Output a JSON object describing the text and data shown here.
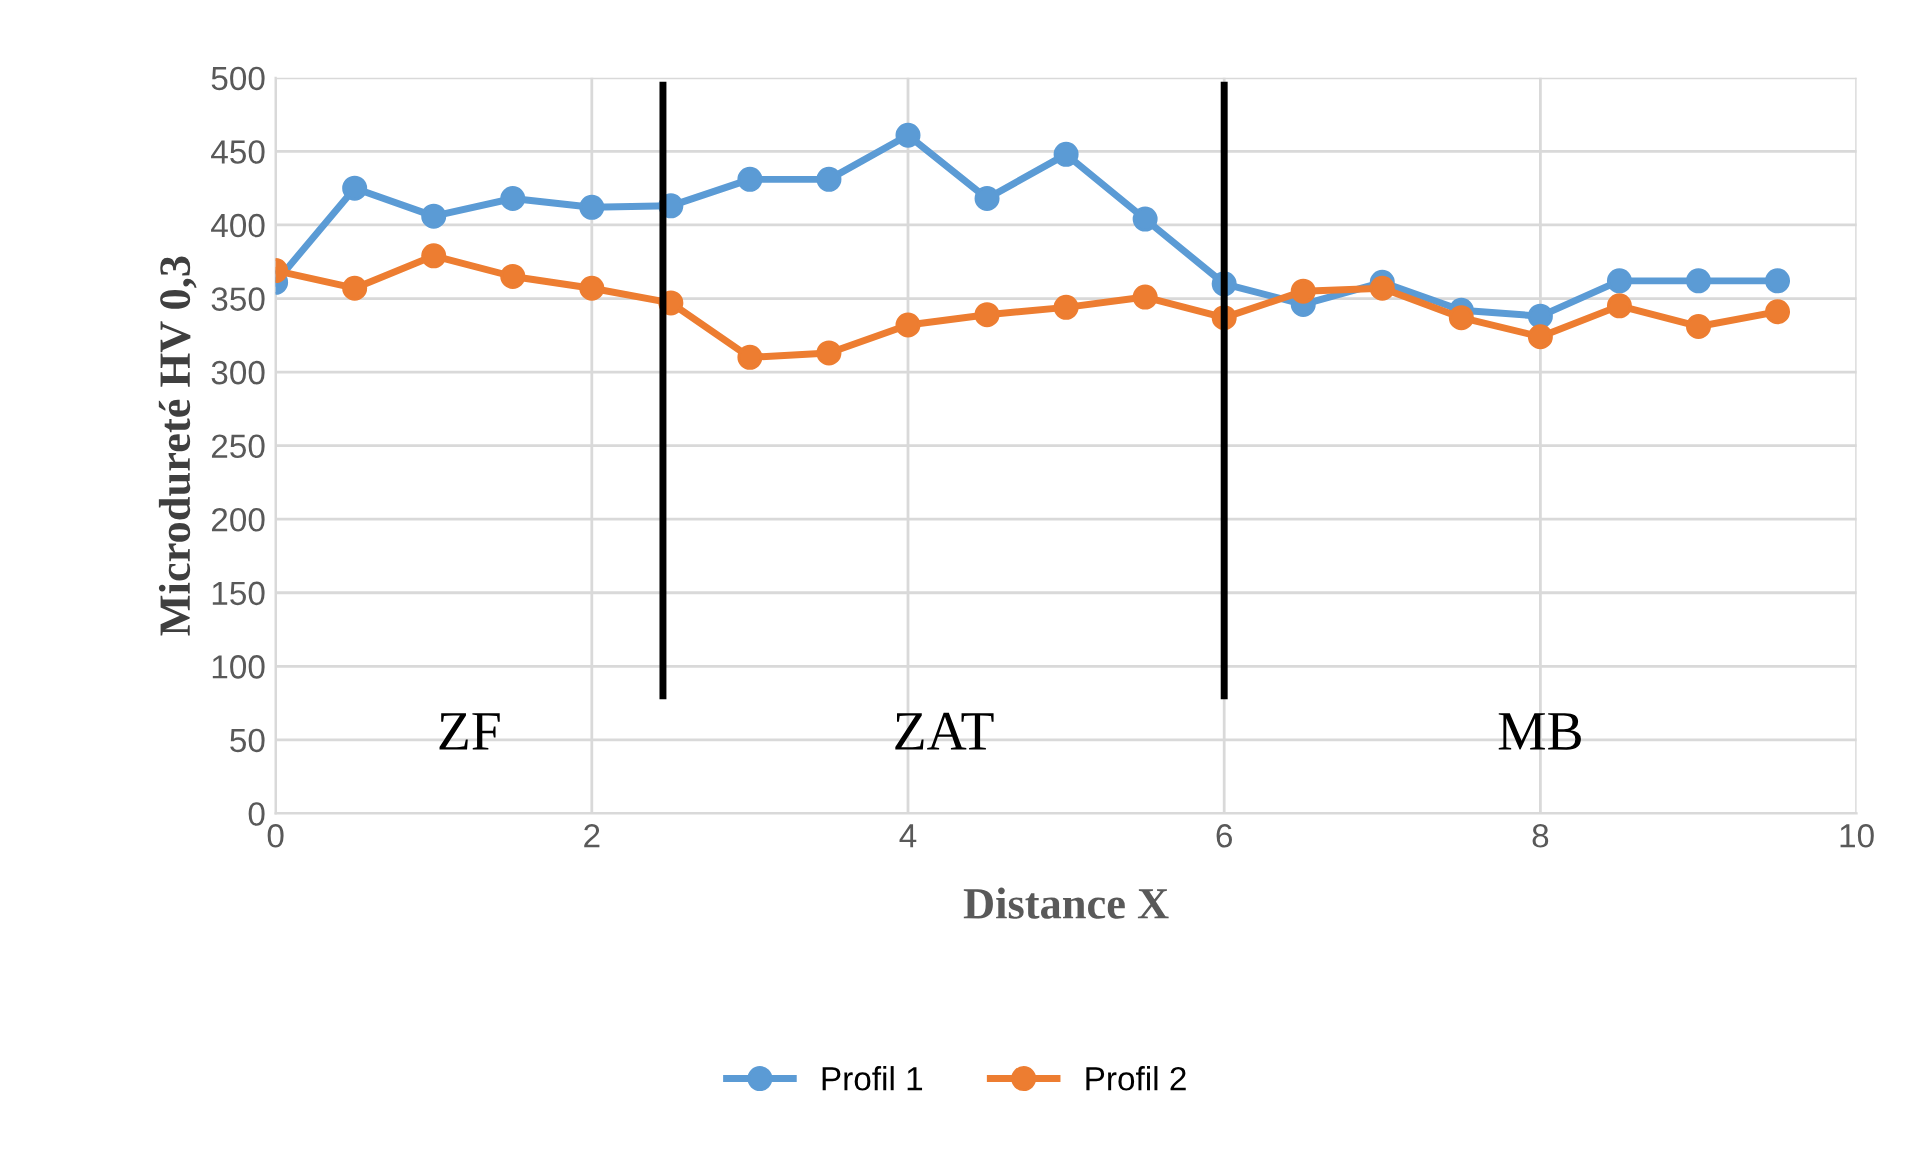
{
  "chart_data": {
    "type": "line",
    "xlabel": "Distance X",
    "ylabel": "Microdureté HV 0,3",
    "x": [
      0,
      0.5,
      1,
      1.5,
      2,
      2.5,
      3,
      3.5,
      4,
      4.5,
      5,
      5.5,
      6,
      6.5,
      7,
      7.5,
      8,
      8.5,
      9,
      9.5
    ],
    "series": [
      {
        "name": "Profil 1",
        "color": "#5b9bd5",
        "values": [
          361,
          425,
          406,
          418,
          412,
          413,
          431,
          431,
          461,
          418,
          448,
          404,
          360,
          346,
          361,
          342,
          338,
          362,
          362,
          362
        ]
      },
      {
        "name": "Profil 2",
        "color": "#ed7d31",
        "values": [
          369,
          357,
          379,
          365,
          357,
          347,
          310,
          313,
          332,
          339,
          344,
          351,
          337,
          355,
          357,
          337,
          324,
          345,
          331,
          341
        ]
      }
    ],
    "xlim": [
      0,
      10
    ],
    "xticks": [
      0,
      2,
      4,
      6,
      8,
      10
    ],
    "ylim": [
      0,
      500
    ],
    "yticks": [
      0,
      50,
      100,
      150,
      200,
      250,
      300,
      350,
      400,
      450,
      500
    ],
    "ref_lines": [
      {
        "axis": "x",
        "value": 2.45,
        "color": "#000000"
      },
      {
        "axis": "x",
        "value": 6,
        "color": "#000000"
      }
    ],
    "annotations": [
      "ZF",
      "ZAT",
      "MB"
    ],
    "grid": true,
    "legend": "bottom",
    "marker": "circle",
    "line_style": "solid"
  }
}
